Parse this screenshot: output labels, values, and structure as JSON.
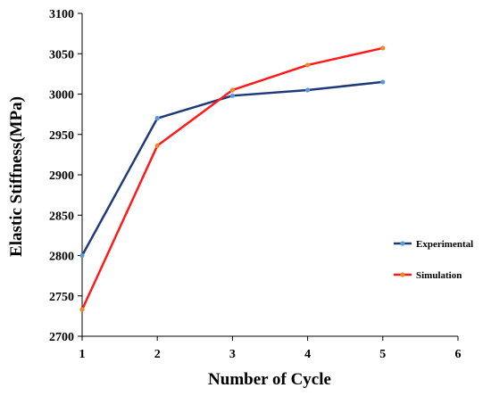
{
  "chart_data": {
    "type": "line",
    "title": "",
    "xlabel": "Number of Cycle",
    "ylabel": "Elastic Stiffness(MPa)",
    "xlim": [
      1,
      6
    ],
    "ylim": [
      2700,
      3100
    ],
    "x_ticks": [
      "1",
      "2",
      "3",
      "4",
      "5",
      "6"
    ],
    "y_ticks": [
      "2700",
      "2750",
      "2800",
      "2850",
      "2900",
      "2950",
      "3000",
      "3050",
      "3100"
    ],
    "grid": false,
    "legend_position": "right",
    "series": [
      {
        "name": "Experimental",
        "color": "#1f3a7a",
        "marker_color": "#5b9bd5",
        "x": [
          1,
          2,
          3,
          4,
          5
        ],
        "values": [
          2800,
          2970,
          2998,
          3005,
          3015
        ]
      },
      {
        "name": "Simulation",
        "color": "#ff1a1a",
        "marker_color": "#f0882a",
        "x": [
          1,
          2,
          3,
          4,
          5
        ],
        "values": [
          2733,
          2936,
          3005,
          3036,
          3057
        ]
      }
    ]
  }
}
